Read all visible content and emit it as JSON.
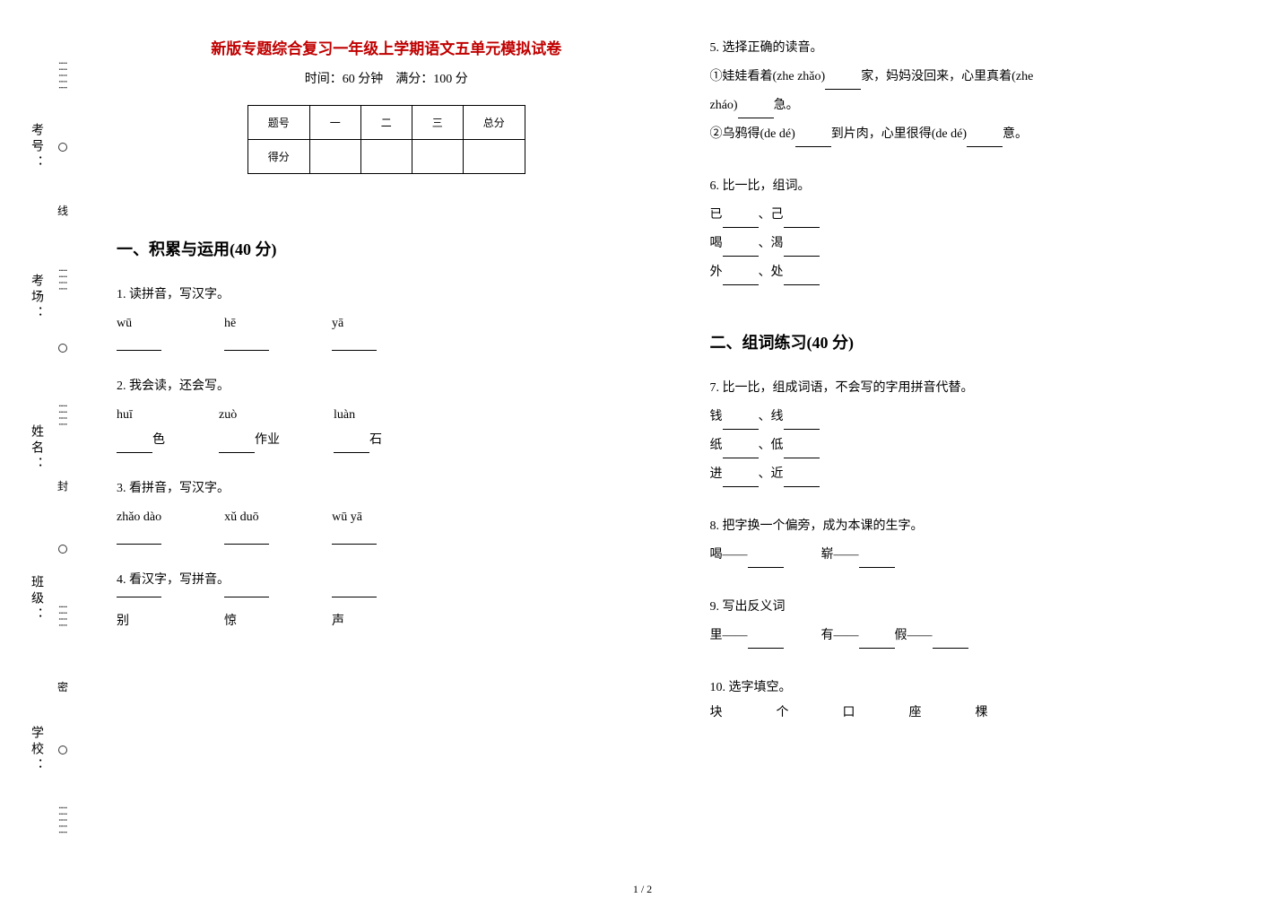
{
  "side": {
    "labels": [
      "考号：",
      "考场：",
      "姓名：",
      "班级：",
      "学校："
    ],
    "seal": [
      "线",
      "封",
      "密"
    ]
  },
  "title": "新版专题综合复习一年级上学期语文五单元模拟试卷",
  "subtitle": "时间：60 分钟　满分：100 分",
  "scoreTable": {
    "headers": [
      "题号",
      "一",
      "二",
      "三",
      "总分"
    ],
    "row2": "得分"
  },
  "section1": {
    "title": "一、积累与运用(40 分)",
    "q1": {
      "text": "1. 读拼音，写汉字。",
      "items": [
        "wū",
        "hē",
        "yā"
      ]
    },
    "q2": {
      "text": "2. 我会读，还会写。",
      "items": [
        {
          "py": "huī",
          "suffix": "色"
        },
        {
          "py": "zuò",
          "suffix": "作业"
        },
        {
          "py": "luàn",
          "suffix": "石"
        }
      ]
    },
    "q3": {
      "text": "3. 看拼音，写汉字。",
      "items": [
        "zhǎo dào",
        "xǔ duō",
        "wū yā"
      ]
    },
    "q4": {
      "text": "4. 看汉字，写拼音。",
      "items": [
        "别",
        "惊",
        "声"
      ]
    }
  },
  "section1b": {
    "q5": {
      "text": "5. 选择正确的读音。",
      "line1a": "①娃娃看着(zhe zhǎo)",
      "line1b": "家，妈妈没回来，心里真着(zhe",
      "line1c": "zháo)",
      "line1d": "急。",
      "line2a": "②乌鸦得(de dé)",
      "line2b": "到片肉，心里很得(de dé)",
      "line2c": "意。"
    },
    "q6": {
      "text": "6. 比一比，组词。",
      "pairs": [
        [
          "已",
          "己"
        ],
        [
          "喝",
          "渴"
        ],
        [
          "外",
          "处"
        ]
      ]
    }
  },
  "section2": {
    "title": "二、组词练习(40 分)",
    "q7": {
      "text": "7. 比一比，组成词语，不会写的字用拼音代替。",
      "pairs": [
        [
          "钱",
          "线"
        ],
        [
          "纸",
          "低"
        ],
        [
          "进",
          "近"
        ]
      ]
    },
    "q8": {
      "text": "8. 把字换一个偏旁，成为本课的生字。",
      "items": [
        "喝——",
        "崭——"
      ]
    },
    "q9": {
      "text": "9. 写出反义词",
      "items": [
        "里——",
        "有——",
        "假——"
      ]
    },
    "q10": {
      "text": "10. 选字填空。",
      "items": [
        "块",
        "个",
        "口",
        "座",
        "棵"
      ]
    }
  },
  "pageNum": "1 / 2"
}
